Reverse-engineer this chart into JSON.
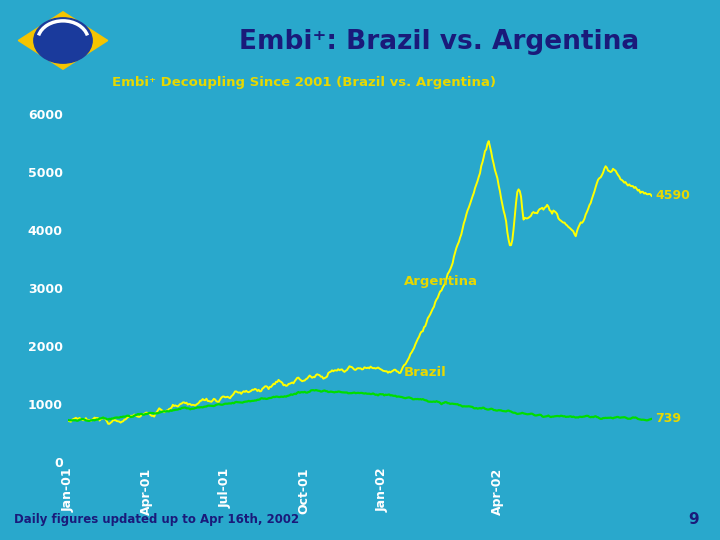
{
  "title": "Embi⁺: Brazil vs. Argentina",
  "subtitle": "Embi⁺ Decoupling Since 2001 (Brazil vs. Argentina)",
  "bg_color_header": "#c5dff0",
  "bg_color_main": "#29a8cc",
  "title_color": "#1a1a7a",
  "subtitle_color": "#e8d800",
  "tick_color": "#ffffff",
  "argentina_color": "#ffff00",
  "brazil_color": "#00dd00",
  "annotation_color": "#e8d800",
  "endval_color": "#e8d800",
  "footer_text": "Daily figures updated up to Apr 16th, 2002",
  "footer_color": "#1a1a7a",
  "page_number": "9",
  "ylim": [
    0,
    6200
  ],
  "yticks": [
    0,
    1000,
    2000,
    3000,
    4000,
    5000,
    6000
  ],
  "end_value_argentina": "4590",
  "end_value_brazil": "739",
  "label_argentina": "Argentina",
  "label_brazil": "Brazil",
  "x_tick_labels": [
    "Jan-01",
    "Apr-01",
    "Jul-01",
    "Oct-01",
    "Jan-02",
    "Apr-02"
  ],
  "flag_green": "#2e7d32",
  "flag_yellow": "#f5c400",
  "flag_blue": "#1a3a9c"
}
